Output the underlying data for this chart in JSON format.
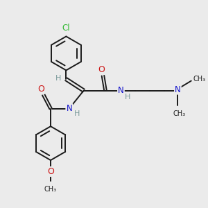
{
  "bg_color": "#ebebeb",
  "bond_color": "#1a1a1a",
  "N_color": "#1414cc",
  "O_color": "#cc1414",
  "Cl_color": "#2db82d",
  "H_color": "#7a9a9a",
  "lw": 1.4,
  "xlim": [
    0,
    10
  ],
  "ylim": [
    0,
    10
  ]
}
